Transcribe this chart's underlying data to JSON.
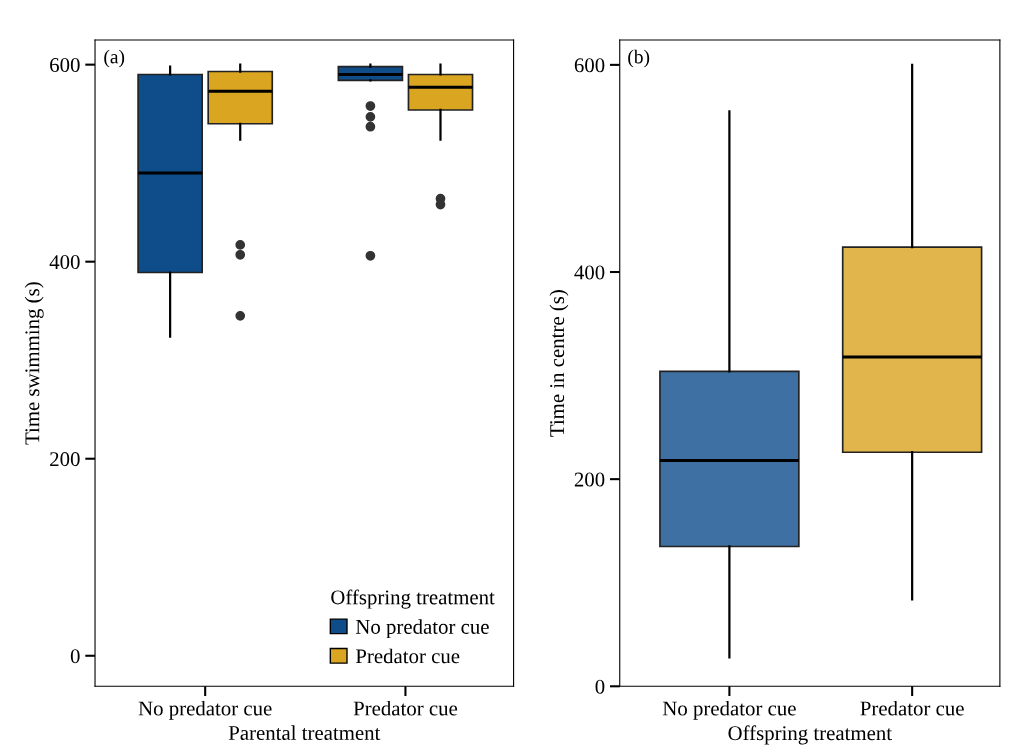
{
  "chart_data": [
    {
      "type": "box",
      "annotations": [
        "(a)"
      ],
      "xlabel": "Parental treatment",
      "ylabel": "Time swimming (s)",
      "categories": [
        "No predator cue",
        "Predator cue"
      ],
      "ylim": [
        -31,
        625
      ],
      "yticks": [
        0,
        200,
        400,
        600
      ],
      "legend": "bottom right",
      "legend_title": "Offspring treatment",
      "series": [
        {
          "name": "No predator cue",
          "color": "#0f4c8a",
          "boxes": [
            {
              "low": 324,
              "q1": 389,
              "median": 490,
              "q3": 590,
              "high": 598
            },
            {
              "low": 584,
              "q1": 584,
              "median": 590,
              "q3": 598,
              "high": 600,
              "outliers": [
                558,
                547,
                537,
                406
              ]
            }
          ]
        },
        {
          "name": "Predator cue",
          "color": "#daa520",
          "boxes": [
            {
              "low": 524,
              "q1": 540,
              "median": 573,
              "q3": 593,
              "high": 600,
              "outliers": [
                417,
                407,
                345
              ]
            },
            {
              "low": 524,
              "q1": 554,
              "median": 577,
              "q3": 590,
              "high": 600,
              "outliers": [
                464,
                458
              ]
            }
          ]
        }
      ]
    },
    {
      "type": "box",
      "annotations": [
        "(b)"
      ],
      "xlabel": "Offspring treatment",
      "ylabel": "Time in centre (s)",
      "categories": [
        "No predator cue",
        "Predator cue"
      ],
      "ylim": [
        0,
        624
      ],
      "yticks": [
        0,
        200,
        400,
        600
      ],
      "colors": [
        "#3f70a3",
        "#e1b44c"
      ],
      "boxes": [
        {
          "low": 28,
          "q1": 135,
          "median": 218,
          "q3": 304,
          "high": 555
        },
        {
          "low": 84,
          "q1": 226,
          "median": 318,
          "q3": 424,
          "high": 600
        }
      ]
    }
  ]
}
